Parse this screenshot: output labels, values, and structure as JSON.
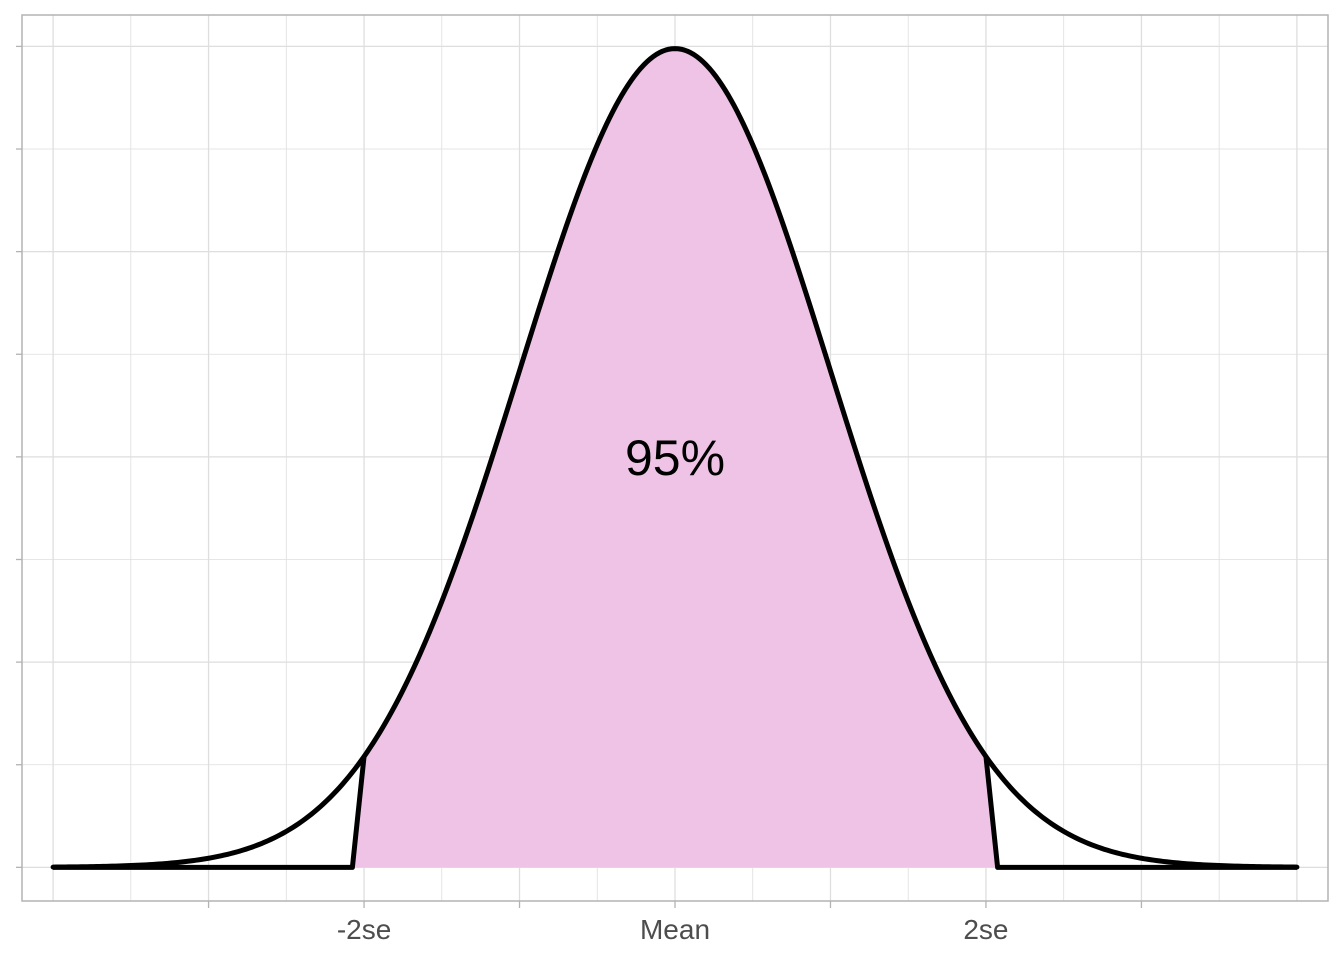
{
  "chart_data": {
    "type": "area",
    "title": "",
    "xlabel": "",
    "ylabel": "",
    "xlim": [
      -4.2,
      4.2
    ],
    "ylim": [
      -0.0164,
      0.4153
    ],
    "x_ticks": [
      -2,
      0,
      2
    ],
    "x_tick_labels": [
      "-2se",
      "Mean",
      "2se"
    ],
    "curve": {
      "name": "",
      "distribution": "normal",
      "mean": 0,
      "sd": 1,
      "x_range": [
        -4,
        4
      ]
    },
    "shaded_region": {
      "x_range": [
        -2,
        2
      ],
      "label": "95%"
    },
    "grid": true,
    "legend": "none",
    "colors": {
      "fill": "#efc3e6",
      "line": "#000000",
      "grid": "#dedede",
      "border": "#b3b3b3",
      "tick_text": "#4d4d4d"
    }
  }
}
